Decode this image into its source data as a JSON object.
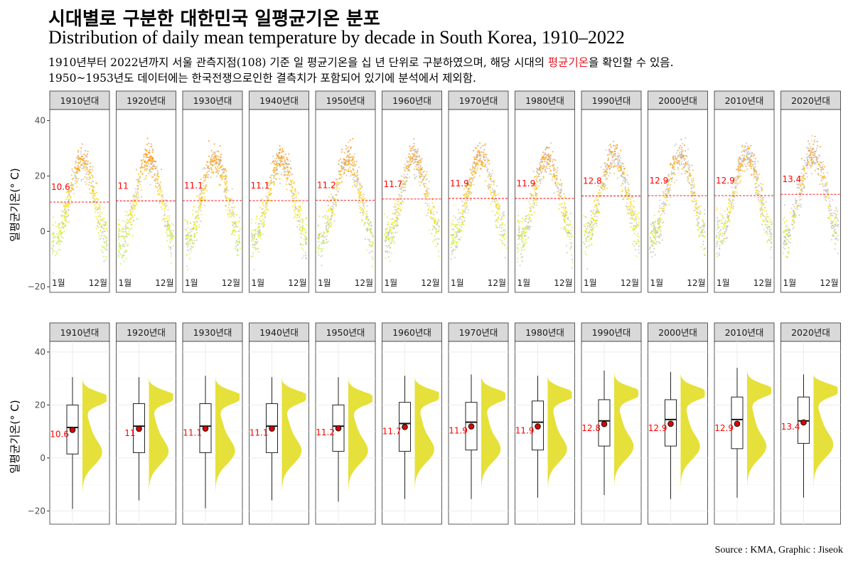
{
  "title": "시대별로 구분한 대한민국 일평균기온 분포",
  "subtitle": "Distribution of daily mean temperature by decade in South Korea, 1910–2022",
  "description": {
    "line1_before": "1910년부터 2022년까지 서울 관측지점(108) 기준 일 평균기온을 십 년 단위로 구분하였으며, 해당 시대의 ",
    "line1_highlight": "평균기온",
    "line1_after": "을 확인할 수 있음.",
    "line2": "1950~1953년도 데이터에는 한국전쟁으로인한 결측치가 포함되어 있기에 분석에서 제외함."
  },
  "source": "Source : KMA, Graphic : Jiseok",
  "colors": {
    "mean_label": "#ff0000",
    "mean_line": "#ff0000",
    "scatter_cold": "#adff2f",
    "scatter_hot": "#ff8c00",
    "scatter_gray": "#bebebe",
    "density_fill": "#e6e03a",
    "mean_point": "#e00000",
    "strip_fill": "#d9d9d9"
  },
  "chart_data": [
    {
      "type": "scatter",
      "title": "",
      "xlabel": "",
      "ylabel": "일평균기온(° C)",
      "ylim": [
        -22,
        44
      ],
      "yticks": [
        -20,
        0,
        20,
        40
      ],
      "x_tick_labels": [
        "1월",
        "12월"
      ],
      "facets": [
        "1910년대",
        "1920년대",
        "1930년대",
        "1940년대",
        "1950년대",
        "1960년대",
        "1970년대",
        "1980년대",
        "1990년대",
        "2000년대",
        "2010년대",
        "2020년대"
      ],
      "mean_labels": [
        "10.6",
        "11",
        "11.1",
        "11.1",
        "11.2",
        "11.7",
        "11.9",
        "11.9",
        "12.8",
        "12.9",
        "12.9",
        "13.4"
      ],
      "means": [
        10.6,
        11.0,
        11.1,
        11.1,
        11.2,
        11.7,
        11.9,
        11.9,
        12.8,
        12.9,
        12.9,
        13.4
      ],
      "grid": false
    },
    {
      "type": "box",
      "title": "",
      "xlabel": "",
      "ylabel": "일평균기온(° C)",
      "ylim": [
        -25,
        44
      ],
      "yticks": [
        -20,
        0,
        20,
        40
      ],
      "facets": [
        "1910년대",
        "1920년대",
        "1930년대",
        "1940년대",
        "1950년대",
        "1960년대",
        "1970년대",
        "1980년대",
        "1990년대",
        "2000년대",
        "2010년대",
        "2020년대"
      ],
      "mean_labels": [
        "10.6",
        "11",
        "11.1",
        "11.1",
        "11.2",
        "11.7",
        "11.9",
        "11.9",
        "12.8",
        "12.9",
        "12.9",
        "13.4"
      ],
      "means": [
        10.6,
        11.0,
        11.1,
        11.1,
        11.2,
        11.7,
        11.9,
        11.9,
        12.8,
        12.9,
        12.9,
        13.4
      ],
      "min": [
        -19.2,
        -16.0,
        -19.0,
        -16.0,
        -16.5,
        -15.5,
        -15.5,
        -15.0,
        -14.0,
        -15.5,
        -15.0,
        -15.0
      ],
      "q1": [
        1.5,
        2.0,
        2.0,
        2.0,
        2.5,
        2.5,
        3.0,
        3.0,
        4.5,
        4.5,
        3.5,
        5.5
      ],
      "median": [
        11.5,
        12.0,
        12.0,
        12.0,
        12.0,
        13.0,
        13.5,
        13.5,
        14.0,
        14.5,
        14.5,
        14.0
      ],
      "q3": [
        20.0,
        20.5,
        20.5,
        20.5,
        20.0,
        21.0,
        21.0,
        21.5,
        22.0,
        22.0,
        23.0,
        23.0
      ],
      "max": [
        30.5,
        30.5,
        31.0,
        30.5,
        30.5,
        31.0,
        31.5,
        31.0,
        33.0,
        32.5,
        34.0,
        31.5
      ],
      "grid": true
    }
  ]
}
